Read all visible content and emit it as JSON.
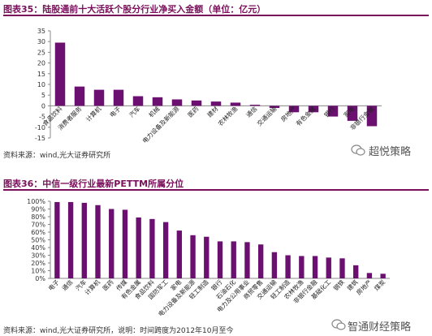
{
  "figure35": {
    "title": "图表35：陆股通前十大活跃个股分行业净买入金额（单位：亿元）",
    "source": "资料来源：wind,光大证券研究所",
    "watermark": "超悦策略"
  },
  "figure36": {
    "title": "图表36：中信一级行业最新PETTM所属分位",
    "source": "资料来源：wind,光大证券研究所，说明：时间跨度为2012年10月至今",
    "watermark": "智通财经策略"
  },
  "colors": {
    "bar": "#6b1070",
    "title": "#7a0f5a",
    "axis": "#888888"
  },
  "chart_data": [
    {
      "type": "bar",
      "title": "陆股通前十大活跃个股分行业净买入金额（单位：亿元）",
      "categories": [
        "食品饮料",
        "消费者服务",
        "计算机",
        "电子",
        "汽车",
        "机械",
        "电力设备及新能源",
        "医药",
        "建材",
        "农林牧渔",
        "通信",
        "交通运输",
        "房地产",
        "有色金属",
        "银行",
        "家电",
        "非银行金融"
      ],
      "values": [
        29.5,
        9,
        7.5,
        7.5,
        4.5,
        4,
        3,
        2.5,
        2,
        1.5,
        0.5,
        -1,
        -3,
        -3,
        -5,
        -7,
        -9.5
      ],
      "ylim": [
        -15,
        35
      ],
      "yticks": [
        -15,
        -10,
        -5,
        0,
        5,
        10,
        15,
        20,
        25,
        30,
        35
      ]
    },
    {
      "type": "bar",
      "title": "中信一级行业最新PETTM所属分位",
      "categories": [
        "电子",
        "通信",
        "汽车",
        "计算机",
        "医药",
        "传媒",
        "有色金属",
        "食品饮料",
        "国防军工",
        "家电",
        "电力设备及新能源",
        "轻工制造",
        "银行",
        "石油石化",
        "电力及公用事业",
        "商贸零售",
        "交通运输",
        "轻工制造",
        "农林牧渔",
        "非银行金融",
        "基础化工",
        "钢铁",
        "建筑",
        "房地产",
        "煤炭"
      ],
      "values": [
        99,
        99,
        98,
        95,
        90,
        89,
        79,
        77,
        73,
        62,
        56,
        54,
        48,
        48,
        47,
        44,
        34,
        30,
        29,
        29,
        27,
        26,
        17,
        7,
        6
      ],
      "ylim": [
        0,
        100
      ],
      "yticks": [
        "0%",
        "10%",
        "20%",
        "30%",
        "40%",
        "50%",
        "60%",
        "70%",
        "80%",
        "90%",
        "100%"
      ]
    }
  ]
}
